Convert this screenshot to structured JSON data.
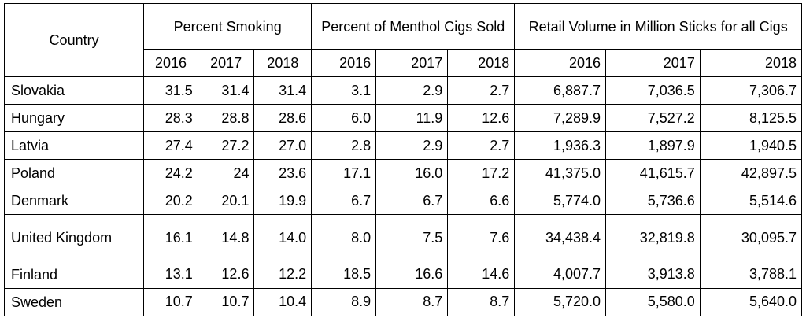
{
  "headers": {
    "country": "Country",
    "groups": [
      "Percent Smoking",
      "Percent of Menthol Cigs Sold",
      "Retail Volume in Million Sticks for all Cigs"
    ],
    "years": [
      "2016",
      "2017",
      "2018",
      "2016",
      "2017",
      "2018",
      "2016",
      "2017",
      "2018"
    ]
  },
  "rows": [
    {
      "country": "Slovakia",
      "values": [
        "31.5",
        "31.4",
        "31.4",
        "3.1",
        "2.9",
        "2.7",
        "6,887.7",
        "7,036.5",
        "7,306.7"
      ]
    },
    {
      "country": "Hungary",
      "values": [
        "28.3",
        "28.8",
        "28.6",
        "6.0",
        "11.9",
        "12.6",
        "7,289.9",
        "7,527.2",
        "8,125.5"
      ]
    },
    {
      "country": "Latvia",
      "values": [
        "27.4",
        "27.2",
        "27.0",
        "2.8",
        "2.9",
        "2.7",
        "1,936.3",
        "1,897.9",
        "1,940.5"
      ]
    },
    {
      "country": "Poland",
      "values": [
        "24.2",
        "24",
        "23.6",
        "17.1",
        "16.0",
        "17.2",
        "41,375.0",
        "41,615.7",
        "42,897.5"
      ]
    },
    {
      "country": "Denmark",
      "values": [
        "20.2",
        "20.1",
        "19.9",
        "6.7",
        "6.7",
        "6.6",
        "5,774.0",
        "5,736.6",
        "5,514.6"
      ]
    },
    {
      "country": "United Kingdom",
      "values": [
        "16.1",
        "14.8",
        "14.0",
        "8.0",
        "7.5",
        "7.6",
        "34,438.4",
        "32,819.8",
        "30,095.7"
      ]
    },
    {
      "country": "Finland",
      "values": [
        "13.1",
        "12.6",
        "12.2",
        "18.5",
        "16.6",
        "14.6",
        "4,007.7",
        "3,913.8",
        "3,788.1"
      ]
    },
    {
      "country": "Sweden",
      "values": [
        "10.7",
        "10.7",
        "10.4",
        "8.9",
        "8.7",
        "8.7",
        "5,720.0",
        "5,580.0",
        "5,640.0"
      ]
    }
  ]
}
